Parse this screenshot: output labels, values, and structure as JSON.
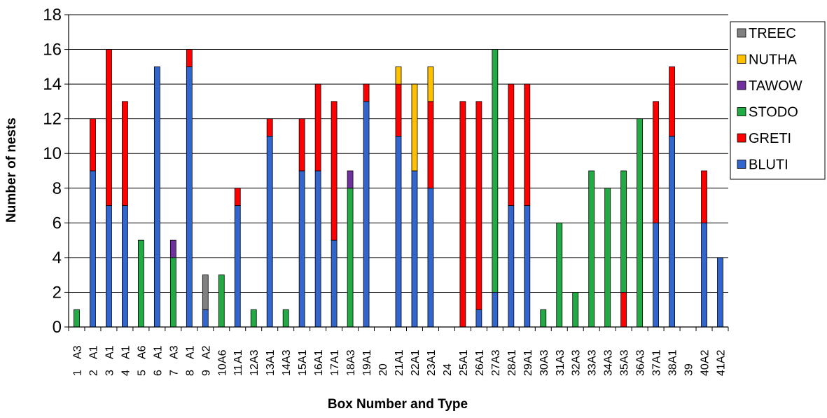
{
  "chart_data": {
    "type": "bar",
    "stacked": true,
    "xlabel": "Box Number and Type",
    "ylabel": "Number of nests",
    "ylim": [
      0,
      18
    ],
    "yticks": [
      0,
      2,
      4,
      6,
      8,
      10,
      12,
      14,
      16,
      18
    ],
    "grid": true,
    "legend_position": "top-right",
    "box_numbers": [
      "1",
      "2",
      "3",
      "4",
      "5",
      "6",
      "7",
      "8",
      "9",
      "10",
      "11",
      "12",
      "13",
      "14",
      "15",
      "16",
      "17",
      "18",
      "19",
      "20",
      "21",
      "22",
      "23",
      "24",
      "25",
      "26",
      "27",
      "28",
      "29",
      "30",
      "31",
      "32",
      "33",
      "34",
      "35",
      "36",
      "37",
      "38",
      "39",
      "40",
      "41"
    ],
    "box_types": [
      "A3",
      "A1",
      "A1",
      "A1",
      "A6",
      "A1",
      "A3",
      "A1",
      "A2",
      "A6",
      "A1",
      "A3",
      "A1",
      "A3",
      "A1",
      "A1",
      "A1",
      "A3",
      "A1",
      "",
      "A1",
      "A1",
      "A1",
      "",
      "A1",
      "A1",
      "A3",
      "A1",
      "A1",
      "A3",
      "A3",
      "A3",
      "A3",
      "A3",
      "A3",
      "A3",
      "A1",
      "A1",
      "",
      "A2",
      "A2"
    ],
    "series": [
      {
        "name": "BLUTI",
        "color": "#3366cc",
        "values": [
          0,
          9,
          7,
          7,
          0,
          15,
          0,
          15,
          1,
          0,
          7,
          0,
          11,
          0,
          9,
          9,
          5,
          0,
          13,
          0,
          11,
          9,
          8,
          0,
          0,
          1,
          2,
          7,
          7,
          0,
          0,
          0,
          0,
          0,
          0,
          0,
          6,
          11,
          0,
          6,
          4
        ]
      },
      {
        "name": "GRETI",
        "color": "#ff0000",
        "values": [
          0,
          3,
          9,
          6,
          0,
          0,
          0,
          1,
          0,
          0,
          1,
          0,
          1,
          0,
          3,
          5,
          8,
          0,
          1,
          0,
          3,
          0,
          5,
          0,
          13,
          12,
          0,
          7,
          7,
          0,
          0,
          0,
          0,
          0,
          2,
          0,
          7,
          4,
          0,
          3,
          0
        ]
      },
      {
        "name": "STODO",
        "color": "#22aa44",
        "values": [
          1,
          0,
          0,
          0,
          5,
          0,
          4,
          0,
          0,
          3,
          0,
          1,
          0,
          1,
          0,
          0,
          0,
          8,
          0,
          0,
          0,
          0,
          0,
          0,
          0,
          0,
          14,
          0,
          0,
          1,
          6,
          2,
          9,
          8,
          7,
          12,
          0,
          0,
          0,
          0,
          0
        ]
      },
      {
        "name": "TAWOW",
        "color": "#7030a0",
        "values": [
          0,
          0,
          0,
          0,
          0,
          0,
          1,
          0,
          0,
          0,
          0,
          0,
          0,
          0,
          0,
          0,
          0,
          1,
          0,
          0,
          0,
          0,
          0,
          0,
          0,
          0,
          0,
          0,
          0,
          0,
          0,
          0,
          0,
          0,
          0,
          0,
          0,
          0,
          0,
          0,
          0
        ]
      },
      {
        "name": "NUTHA",
        "color": "#ffc000",
        "values": [
          0,
          0,
          0,
          0,
          0,
          0,
          0,
          0,
          0,
          0,
          0,
          0,
          0,
          0,
          0,
          0,
          0,
          0,
          0,
          0,
          1,
          5,
          2,
          0,
          0,
          0,
          0,
          0,
          0,
          0,
          0,
          0,
          0,
          0,
          0,
          0,
          0,
          0,
          0,
          0,
          0
        ]
      },
      {
        "name": "TREEC",
        "color": "#808080",
        "values": [
          0,
          0,
          0,
          0,
          0,
          0,
          0,
          0,
          2,
          0,
          0,
          0,
          0,
          0,
          0,
          0,
          0,
          0,
          0,
          0,
          0,
          0,
          0,
          0,
          0,
          0,
          0,
          0,
          0,
          0,
          0,
          0,
          0,
          0,
          0,
          0,
          0,
          0,
          0,
          0,
          0
        ]
      }
    ],
    "legend_order": [
      "TREEC",
      "NUTHA",
      "TAWOW",
      "STODO",
      "GRETI",
      "BLUTI"
    ]
  }
}
